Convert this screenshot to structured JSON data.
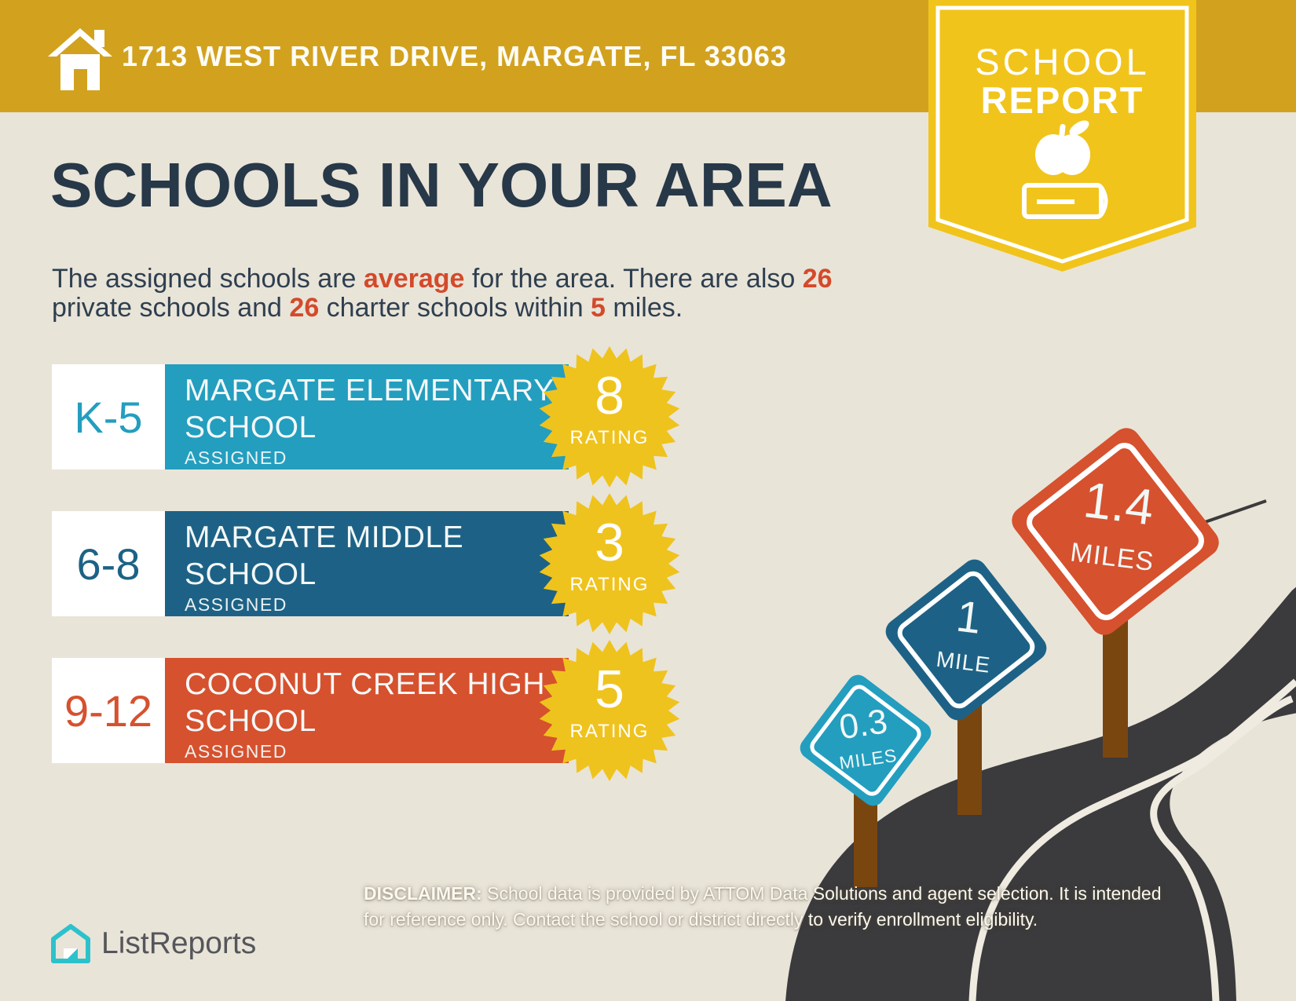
{
  "colors": {
    "background": "#E9E4D8",
    "header_gold": "#D2A21E",
    "badge_yellow": "#F1C41C",
    "navy": "#273848",
    "accent_red": "#D34A2B",
    "cyan": "#239EBF",
    "dark_blue": "#1D6286",
    "orange_red": "#D6512E",
    "burst_yellow": "#EFC31D",
    "road": "#3B3A3C",
    "road_line": "#EFEBE0",
    "post_brown": "#7A460F",
    "logo_teal": "#2CC2CB",
    "logo_gray": "#55565B",
    "white": "#FFFFFF"
  },
  "header": {
    "address": "1713 WEST RIVER DRIVE, MARGATE, FL 33063"
  },
  "badge": {
    "line1": "SCHOOL",
    "line2": "REPORT"
  },
  "main": {
    "title": "SCHOOLS IN YOUR AREA",
    "subtitle_segments": [
      {
        "text": "The assigned schools are ",
        "em": false
      },
      {
        "text": "average",
        "em": true
      },
      {
        "text": " for the area. There are also ",
        "em": false
      },
      {
        "text": "26",
        "em": true
      },
      {
        "text": "\n",
        "em": false
      },
      {
        "text": "private schools and ",
        "em": false
      },
      {
        "text": "26",
        "em": true
      },
      {
        "text": " charter schools within ",
        "em": false
      },
      {
        "text": "5",
        "em": true
      },
      {
        "text": " miles.",
        "em": false
      }
    ]
  },
  "schools": [
    {
      "grades": "K-5",
      "name": "MARGATE ELEMENTARY SCHOOL",
      "status": "ASSIGNED",
      "rating": "8",
      "rating_label": "RATING"
    },
    {
      "grades": "6-8",
      "name": "MARGATE MIDDLE SCHOOL",
      "status": "ASSIGNED",
      "rating": "3",
      "rating_label": "RATING"
    },
    {
      "grades": "9-12",
      "name": "COCONUT CREEK HIGH SCHOOL",
      "status": "ASSIGNED",
      "rating": "5",
      "rating_label": "RATING"
    }
  ],
  "signs": [
    {
      "distance": "0.3",
      "unit": "MILES"
    },
    {
      "distance": "1",
      "unit": "MILE"
    },
    {
      "distance": "1.4",
      "unit": "MILES"
    }
  ],
  "footer": {
    "logo_text": "ListReports",
    "disclaimer_label": "DISCLAIMER:",
    "disclaimer_line1": " School data is provided by ATTOM Data Solutions and agent selection. It is intended",
    "disclaimer_line2": "for reference only. Contact the school or district directly to verify enrollment eligibility."
  }
}
